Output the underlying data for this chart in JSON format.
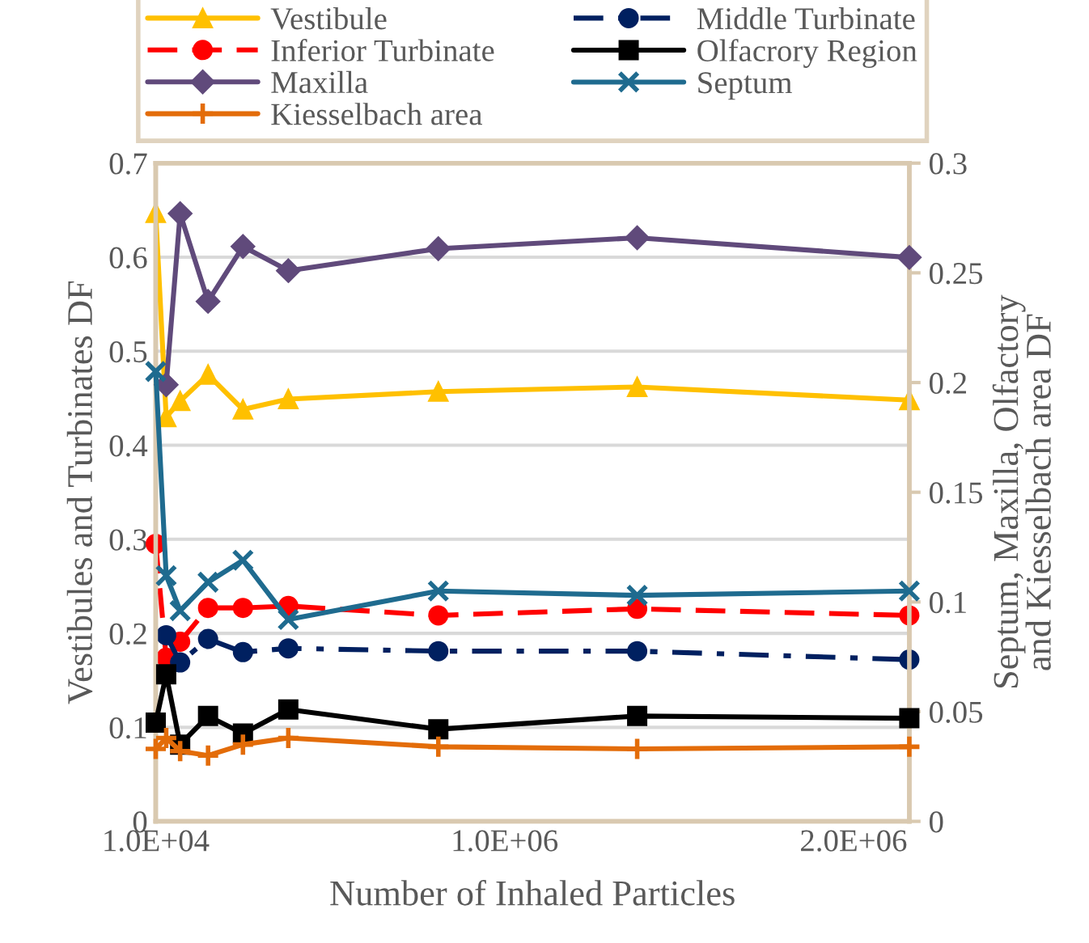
{
  "chart_data": {
    "type": "line",
    "xlabel": "Number of Inhaled Particles",
    "ylabel": "Vestibules and Turbinates DF",
    "y2label": "Septum, Maxilla, Olfactory and Kiesselbach area DF",
    "x": [
      10000,
      40000,
      80000,
      160000,
      260000,
      390000,
      820000,
      1390000,
      2170000
    ],
    "xlim": [
      10000,
      2170000
    ],
    "xticks": [
      {
        "value": 10000,
        "label": "1.0E+04"
      },
      {
        "value": 1010000,
        "label": "1.0E+06"
      },
      {
        "value": 2010000,
        "label": "2.0E+06"
      }
    ],
    "ylim": [
      0,
      0.7
    ],
    "yticks": [
      0,
      0.1,
      0.2,
      0.3,
      0.4,
      0.5,
      0.6,
      0.7
    ],
    "y2lim": [
      0,
      0.3
    ],
    "y2ticks": [
      0,
      0.05,
      0.1,
      0.15,
      0.2,
      0.25,
      0.3
    ],
    "grid": "y",
    "legend": "top",
    "series": [
      {
        "name": "Vestibule",
        "color": "#ffc000",
        "marker": "triangle",
        "line_style": "solid",
        "values": [
          0.647,
          0.43,
          0.447,
          0.475,
          0.438,
          0.449,
          0.457,
          0.462,
          0.448
        ]
      },
      {
        "name": "Inferior Turbinate",
        "color": "#ff0000",
        "marker": "circle",
        "line_style": "dashed",
        "values": [
          0.295,
          0.174,
          0.191,
          0.227,
          0.227,
          0.229,
          0.219,
          0.226,
          0.219
        ]
      },
      {
        "name": "Maxilla",
        "color": "#604a7b",
        "marker": "diamond",
        "line_style": "solid",
        "axis": "y2",
        "values": [
          null,
          0.199,
          0.277,
          0.237,
          0.262,
          0.251,
          0.261,
          0.266,
          0.257
        ]
      },
      {
        "name": "Kiesselbach area",
        "color": "#e36c09",
        "marker": "plus",
        "line_style": "solid",
        "axis": "y2",
        "values": [
          0.033,
          0.038,
          0.032,
          0.03,
          0.035,
          0.038,
          0.034,
          0.033,
          0.034
        ]
      },
      {
        "name": "Middle Turbinate",
        "color": "#002060",
        "marker": "circle",
        "line_style": "dashdot",
        "values": [
          null,
          0.198,
          0.169,
          0.194,
          0.18,
          0.184,
          0.181,
          0.181,
          0.172
        ]
      },
      {
        "name": "Olfacrory Region",
        "color": "#000000",
        "marker": "square",
        "line_style": "solid",
        "axis": "y2",
        "values": [
          0.045,
          0.067,
          0.035,
          0.048,
          0.04,
          0.051,
          0.042,
          0.048,
          0.047
        ]
      },
      {
        "name": "Septum",
        "color": "#1f6b8f",
        "marker": "cross",
        "line_style": "solid",
        "axis": "y2",
        "values": [
          0.205,
          0.112,
          0.096,
          0.109,
          0.119,
          0.092,
          0.105,
          0.103,
          0.105
        ]
      }
    ]
  }
}
